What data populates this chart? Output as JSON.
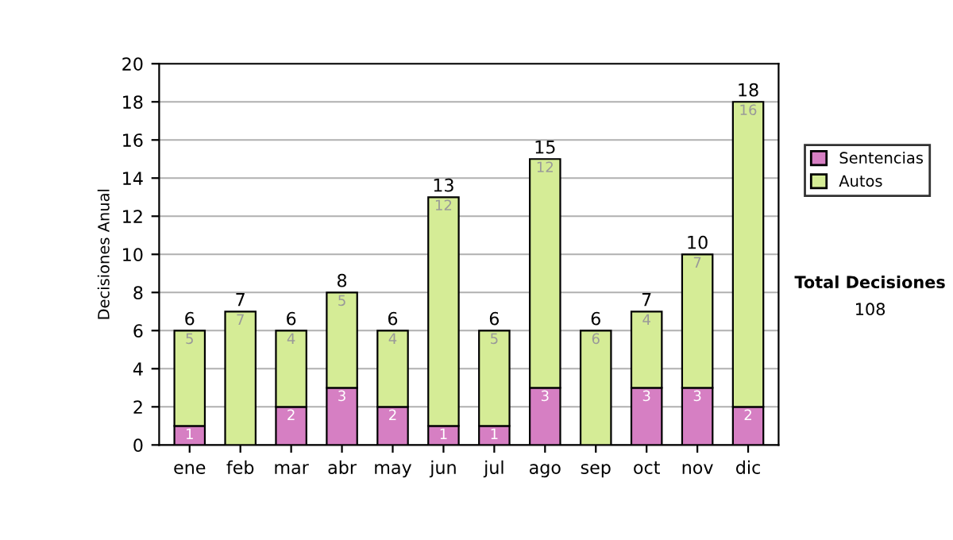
{
  "chart_data": {
    "type": "bar",
    "ylabel": "Decisiones Anual",
    "categories": [
      "ene",
      "feb",
      "mar",
      "abr",
      "may",
      "jun",
      "jul",
      "ago",
      "sep",
      "oct",
      "nov",
      "dic"
    ],
    "stacked": true,
    "ylim": [
      0,
      20
    ],
    "yticks": [
      0,
      2,
      4,
      6,
      8,
      10,
      12,
      14,
      16,
      18,
      20
    ],
    "grid": "y",
    "legend": "right",
    "series": [
      {
        "name": "Sentencias",
        "color": "#d67fc3",
        "values": [
          1,
          0,
          2,
          3,
          2,
          1,
          1,
          3,
          0,
          3,
          3,
          2
        ],
        "value_labels": [
          "1",
          null,
          "2",
          "3",
          "2",
          "1",
          "1",
          "3",
          null,
          "3",
          "3",
          "2"
        ]
      },
      {
        "name": "Autos",
        "color": "#d5ec96",
        "values": [
          5,
          7,
          4,
          5,
          4,
          12,
          5,
          12,
          6,
          4,
          7,
          16
        ],
        "value_labels": [
          "5",
          "7",
          "4",
          "5",
          "4",
          "12",
          "5",
          "12",
          "6",
          "4",
          "7",
          "16"
        ]
      }
    ],
    "totals": [
      "6",
      "7",
      "6",
      "8",
      "6",
      "13",
      "6",
      "15",
      "6",
      "7",
      "10",
      "18"
    ],
    "annotations": [
      "Total Decisiones",
      "108"
    ]
  }
}
